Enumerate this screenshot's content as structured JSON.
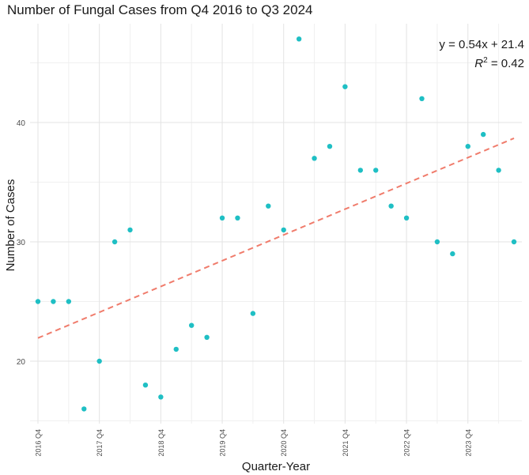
{
  "chart_data": {
    "type": "scatter",
    "title": "Number of Fungal Cases from Q4 2016 to Q3 2024",
    "xlabel": "Quarter-Year",
    "ylabel": "Number of Cases",
    "ylim": [
      15,
      48
    ],
    "yticks": [
      20,
      30,
      40
    ],
    "xticks": [
      "2016 Q4",
      "2017 Q4",
      "2018 Q4",
      "2019 Q4",
      "2020 Q4",
      "2021 Q4",
      "2022 Q4",
      "2023 Q4"
    ],
    "grid": true,
    "point_color": "#1fbfc4",
    "trend_color": "#f07c6c",
    "quarters": [
      "2016 Q4",
      "2017 Q1",
      "2017 Q2",
      "2017 Q3",
      "2017 Q4",
      "2018 Q1",
      "2018 Q2",
      "2018 Q3",
      "2018 Q4",
      "2019 Q1",
      "2019 Q2",
      "2019 Q3",
      "2019 Q4",
      "2020 Q1",
      "2020 Q2",
      "2020 Q3",
      "2020 Q4",
      "2021 Q1",
      "2021 Q2",
      "2021 Q3",
      "2021 Q4",
      "2022 Q1",
      "2022 Q2",
      "2022 Q3",
      "2022 Q4",
      "2023 Q1",
      "2023 Q2",
      "2023 Q3",
      "2023 Q4",
      "2024 Q1",
      "2024 Q2",
      "2024 Q3"
    ],
    "values": [
      25,
      25,
      25,
      16,
      20,
      30,
      31,
      18,
      17,
      21,
      23,
      22,
      32,
      32,
      24,
      33,
      31,
      47,
      37,
      38,
      43,
      36,
      36,
      33,
      32,
      42,
      30,
      29,
      38,
      39,
      36,
      30
    ],
    "trendline": {
      "slope": 0.54,
      "intercept": 21.4,
      "style": "dashed"
    },
    "annotation": {
      "equation": "y = 0.54x + 21.4",
      "r2_label": "R",
      "r2_exponent": "2",
      "r2_value": " = 0.42"
    }
  }
}
